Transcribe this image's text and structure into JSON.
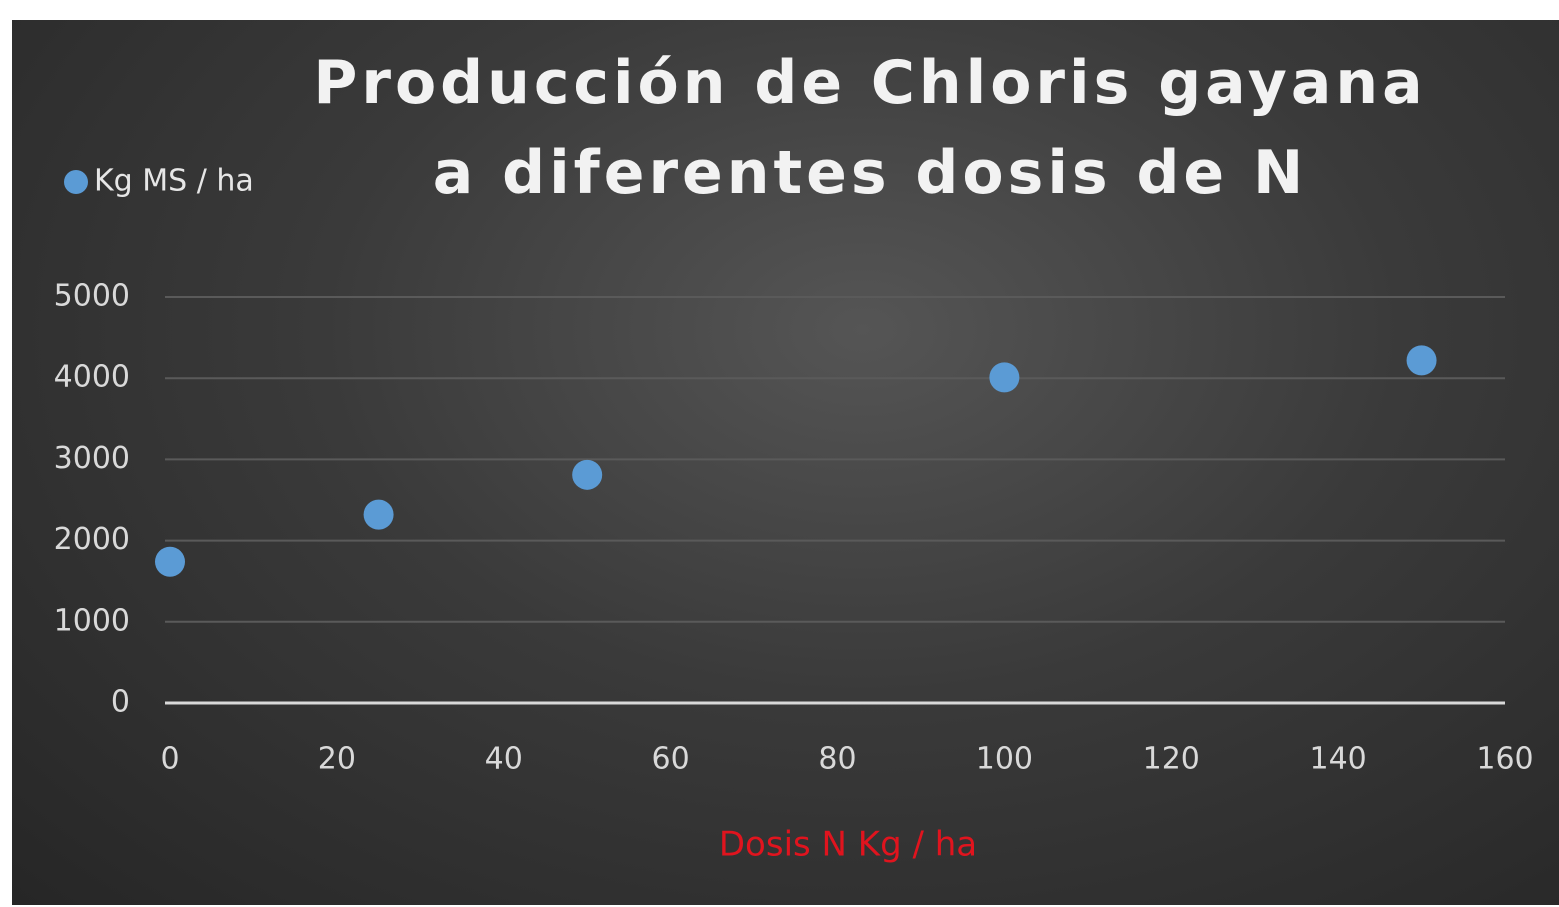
{
  "chart_data": {
    "type": "scatter",
    "title": "Producción de Chloris gayana a diferentes dosis de N",
    "x_label": "Dosis N Kg / ha",
    "series": [
      {
        "name": "Kg MS / ha",
        "color": "#5b9bd5",
        "x": [
          0,
          25,
          50,
          100,
          150
        ],
        "values": [
          1740,
          2320,
          2810,
          4010,
          4220
        ]
      }
    ],
    "xlim": [
      0,
      160
    ],
    "xticks": [
      0,
      20,
      40,
      60,
      80,
      100,
      120,
      140,
      160
    ],
    "ylim": [
      0,
      5000
    ],
    "yticks": [
      0,
      1000,
      2000,
      3000,
      4000,
      5000
    ],
    "grid": true,
    "legend": "top-left"
  }
}
